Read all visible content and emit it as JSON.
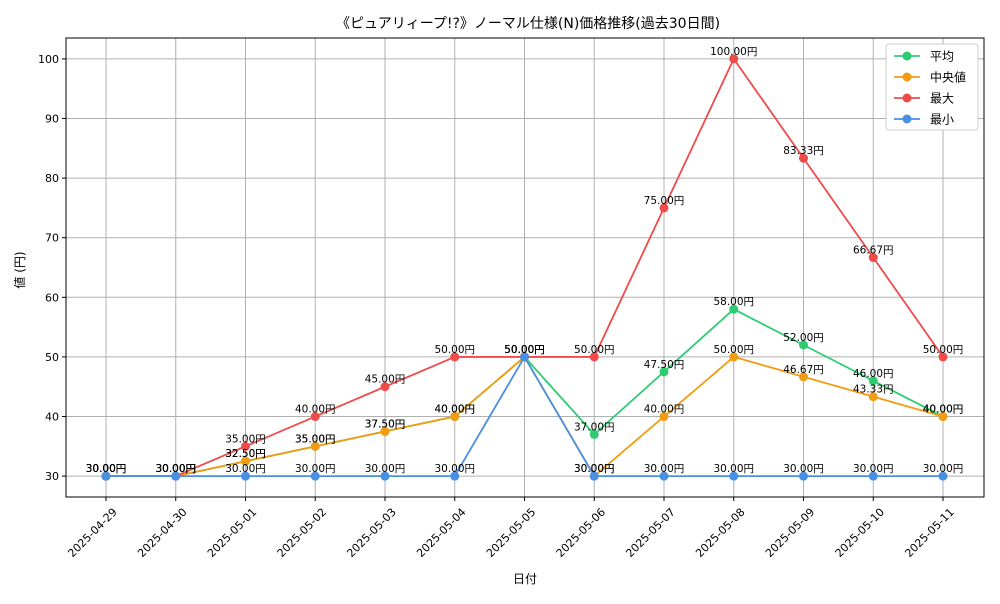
{
  "chart_data": {
    "type": "line",
    "title": "《ピュアリィープ!?》ノーマル仕様(N)価格推移(過去30日間)",
    "xlabel": "日付",
    "ylabel": "値 (円)",
    "ylim": [
      26.5,
      103.5
    ],
    "yticks": [
      30,
      40,
      50,
      60,
      70,
      80,
      90,
      100
    ],
    "value_suffix": "円",
    "grid": true,
    "legend_position": "top-right",
    "categories": [
      "2025-04-29",
      "2025-04-30",
      "2025-05-01",
      "2025-05-02",
      "2025-05-03",
      "2025-05-04",
      "2025-05-05",
      "2025-05-06",
      "2025-05-07",
      "2025-05-08",
      "2025-05-09",
      "2025-05-10",
      "2025-05-11"
    ],
    "series": [
      {
        "name": "平均",
        "color": "#2ecc71",
        "values": [
          30,
          30,
          32.5,
          35,
          37.5,
          40,
          50,
          37,
          47.5,
          58,
          52,
          46,
          40
        ]
      },
      {
        "name": "中央値",
        "color": "#f39c12",
        "values": [
          30,
          30,
          32.5,
          35,
          37.5,
          40,
          50,
          30,
          40,
          50,
          46.67,
          43.33,
          40
        ]
      },
      {
        "name": "最大",
        "color": "#ef4b4b",
        "values": [
          30,
          30,
          35,
          40,
          45,
          50,
          50,
          50,
          75,
          100,
          83.33,
          66.67,
          50
        ]
      },
      {
        "name": "最小",
        "color": "#4a90e2",
        "values": [
          30,
          30,
          30,
          30,
          30,
          30,
          50,
          30,
          30,
          30,
          30,
          30,
          30
        ]
      }
    ]
  }
}
